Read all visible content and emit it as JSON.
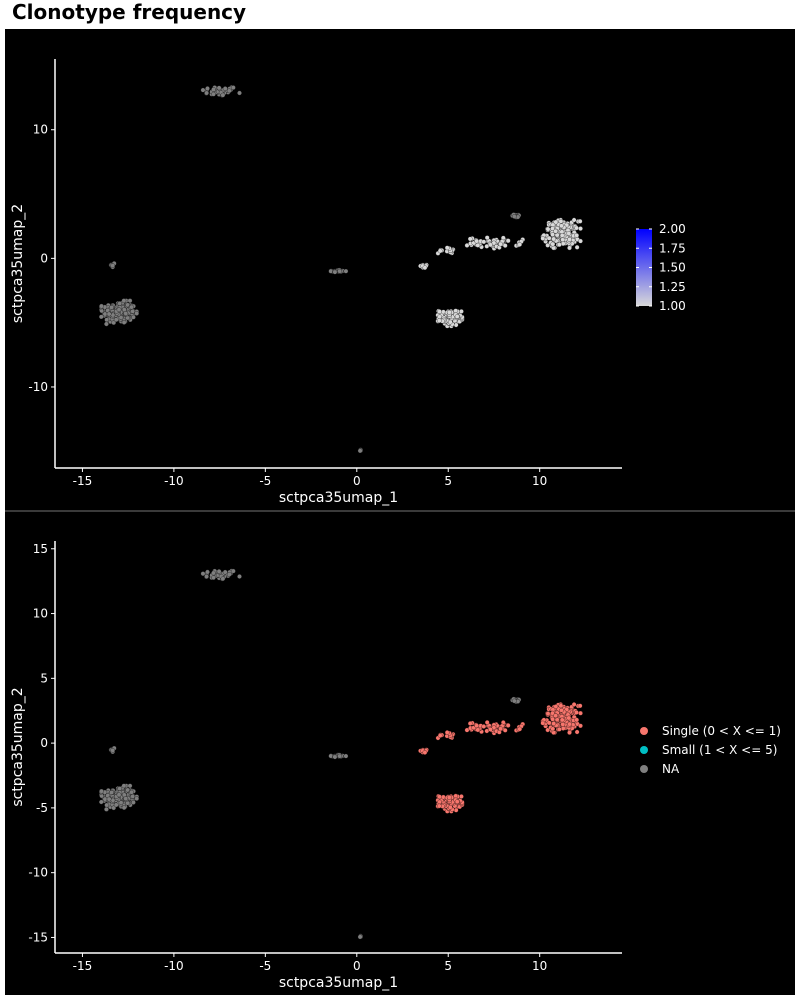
{
  "title": "Clonotype frequency",
  "colors": {
    "background": "#000000",
    "axis": "#ffffff",
    "na_point": "#7f7f7f",
    "light_point": "#d9d9d9",
    "single": "#f8766d",
    "small": "#00bfc4",
    "gradient_low": "#d9d9d9",
    "gradient_high": "#0000ff"
  },
  "chart_data": [
    {
      "type": "scatter",
      "title": "",
      "xlabel": "sctpca35umap_1",
      "ylabel": "sctpca35umap_2",
      "xlim": [
        -16.5,
        14.5
      ],
      "ylim": [
        -16.3,
        15.5
      ],
      "xticks": [
        -15,
        -10,
        -5,
        0,
        5,
        10
      ],
      "xtick_labels": [
        "-15",
        "-10",
        "-5",
        "0",
        "5",
        "10"
      ],
      "yticks": [
        -10,
        0,
        10
      ],
      "ytick_labels": [
        "-10",
        "0",
        "10"
      ],
      "grid": false,
      "legend": {
        "type": "colorbar",
        "placement": "right",
        "range": [
          1.0,
          2.0
        ],
        "ticks": [
          "2.00",
          "1.75",
          "1.50",
          "1.25",
          "1.00"
        ]
      },
      "clusters": [
        {
          "name": "top-small",
          "center": [
            -7.5,
            13.0
          ],
          "spread": [
            0.9,
            0.35
          ],
          "count": 45,
          "value": null
        },
        {
          "name": "left-large",
          "center": [
            -13.0,
            -4.2
          ],
          "spread": [
            0.8,
            0.75
          ],
          "count": 230,
          "value": null
        },
        {
          "name": "left-tail",
          "center": [
            -13.3,
            -0.5
          ],
          "spread": [
            0.12,
            0.2
          ],
          "count": 8,
          "value": null
        },
        {
          "name": "center-small",
          "center": [
            -1.0,
            -1.0
          ],
          "spread": [
            0.35,
            0.08
          ],
          "count": 20,
          "value": null
        },
        {
          "name": "bottom-outlier",
          "center": [
            0.2,
            -14.9
          ],
          "spread": [
            0.05,
            0.05
          ],
          "count": 3,
          "value": null
        },
        {
          "name": "top-right-gray",
          "center": [
            8.7,
            3.3
          ],
          "spread": [
            0.25,
            0.12
          ],
          "count": 10,
          "value": null
        },
        {
          "name": "right-large",
          "center": [
            11.2,
            1.9
          ],
          "spread": [
            0.85,
            0.9
          ],
          "count": 190,
          "value": 1.0
        },
        {
          "name": "arm",
          "center": [
            7.5,
            1.2
          ],
          "spread": [
            1.3,
            0.35
          ],
          "count": 60,
          "value": 1.0
        },
        {
          "name": "neck",
          "center": [
            4.9,
            0.6
          ],
          "spread": [
            0.4,
            0.2
          ],
          "count": 15,
          "value": 1.0
        },
        {
          "name": "middle-left",
          "center": [
            3.7,
            -0.6
          ],
          "spread": [
            0.25,
            0.12
          ],
          "count": 8,
          "value": 1.0
        },
        {
          "name": "bottom-middle",
          "center": [
            5.1,
            -4.6
          ],
          "spread": [
            0.55,
            0.55
          ],
          "count": 95,
          "value": 1.0
        }
      ]
    },
    {
      "type": "scatter",
      "title": "",
      "xlabel": "sctpca35umap_1",
      "ylabel": "sctpca35umap_2",
      "xlim": [
        -16.5,
        14.5
      ],
      "ylim": [
        -16.2,
        15.6
      ],
      "xticks": [
        -15,
        -10,
        -5,
        0,
        5,
        10
      ],
      "xtick_labels": [
        "-15",
        "-10",
        "-5",
        "0",
        "5",
        "10"
      ],
      "yticks": [
        -15,
        -10,
        -5,
        0,
        5,
        10,
        15
      ],
      "ytick_labels": [
        "-15",
        "-10",
        "-5",
        "0",
        "5",
        "10",
        "15"
      ],
      "grid": false,
      "legend": {
        "placement": "right",
        "entries": [
          {
            "label": "Single (0 < X <= 1)",
            "color": "#f8766d"
          },
          {
            "label": "Small (1 < X <= 5)",
            "color": "#00bfc4"
          },
          {
            "label": "NA",
            "color": "#7f7f7f"
          }
        ]
      },
      "clusters": [
        {
          "name": "top-small",
          "center": [
            -7.5,
            13.0
          ],
          "spread": [
            0.9,
            0.35
          ],
          "count": 45,
          "category": "NA"
        },
        {
          "name": "left-large",
          "center": [
            -13.0,
            -4.2
          ],
          "spread": [
            0.8,
            0.75
          ],
          "count": 230,
          "category": "NA"
        },
        {
          "name": "left-tail",
          "center": [
            -13.3,
            -0.5
          ],
          "spread": [
            0.12,
            0.2
          ],
          "count": 8,
          "category": "NA"
        },
        {
          "name": "center-small",
          "center": [
            -1.0,
            -1.0
          ],
          "spread": [
            0.35,
            0.08
          ],
          "count": 20,
          "category": "NA"
        },
        {
          "name": "bottom-outlier",
          "center": [
            0.2,
            -14.9
          ],
          "spread": [
            0.05,
            0.05
          ],
          "count": 3,
          "category": "NA"
        },
        {
          "name": "top-right-gray",
          "center": [
            8.7,
            3.3
          ],
          "spread": [
            0.25,
            0.12
          ],
          "count": 10,
          "category": "NA"
        },
        {
          "name": "right-large",
          "center": [
            11.2,
            1.9
          ],
          "spread": [
            0.85,
            0.9
          ],
          "count": 190,
          "category": "Single (0 < X <= 1)"
        },
        {
          "name": "arm",
          "center": [
            7.5,
            1.2
          ],
          "spread": [
            1.3,
            0.35
          ],
          "count": 60,
          "category": "Single (0 < X <= 1)"
        },
        {
          "name": "neck",
          "center": [
            4.9,
            0.6
          ],
          "spread": [
            0.4,
            0.2
          ],
          "count": 15,
          "category": "Single (0 < X <= 1)"
        },
        {
          "name": "middle-left",
          "center": [
            3.7,
            -0.6
          ],
          "spread": [
            0.25,
            0.12
          ],
          "count": 8,
          "category": "Single (0 < X <= 1)"
        },
        {
          "name": "bottom-middle",
          "center": [
            5.1,
            -4.6
          ],
          "spread": [
            0.55,
            0.55
          ],
          "count": 95,
          "category": "Single (0 < X <= 1)"
        }
      ]
    }
  ]
}
